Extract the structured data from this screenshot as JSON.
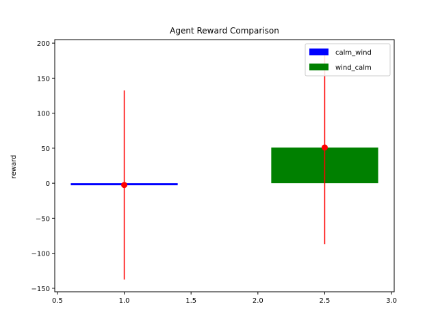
{
  "chart_data": {
    "type": "bar",
    "title": "Agent Reward Comparison",
    "xlabel": "",
    "ylabel": "reward",
    "xlim": [
      0.48,
      3.02
    ],
    "ylim": [
      -155,
      205
    ],
    "xticks": [
      0.5,
      1.0,
      1.5,
      2.0,
      2.5,
      3.0
    ],
    "xtick_labels": [
      "0.5",
      "1.0",
      "1.5",
      "2.0",
      "2.5",
      "3.0"
    ],
    "yticks": [
      -150,
      -100,
      -50,
      0,
      50,
      100,
      150,
      200
    ],
    "ytick_labels": [
      "−150",
      "−100",
      "−50",
      "0",
      "50",
      "100",
      "150",
      "200"
    ],
    "grid": false,
    "legend_position": "top-right",
    "series": [
      {
        "name": "calm_wind",
        "color": "#0000ff",
        "x": 1.0,
        "width": 0.8,
        "value": -2.5,
        "error": 135,
        "error_color": "#ff0000"
      },
      {
        "name": "wind_calm",
        "color": "#008000",
        "x": 2.5,
        "width": 0.8,
        "value": 51,
        "error": 138,
        "error_color": "#ff0000"
      }
    ]
  }
}
